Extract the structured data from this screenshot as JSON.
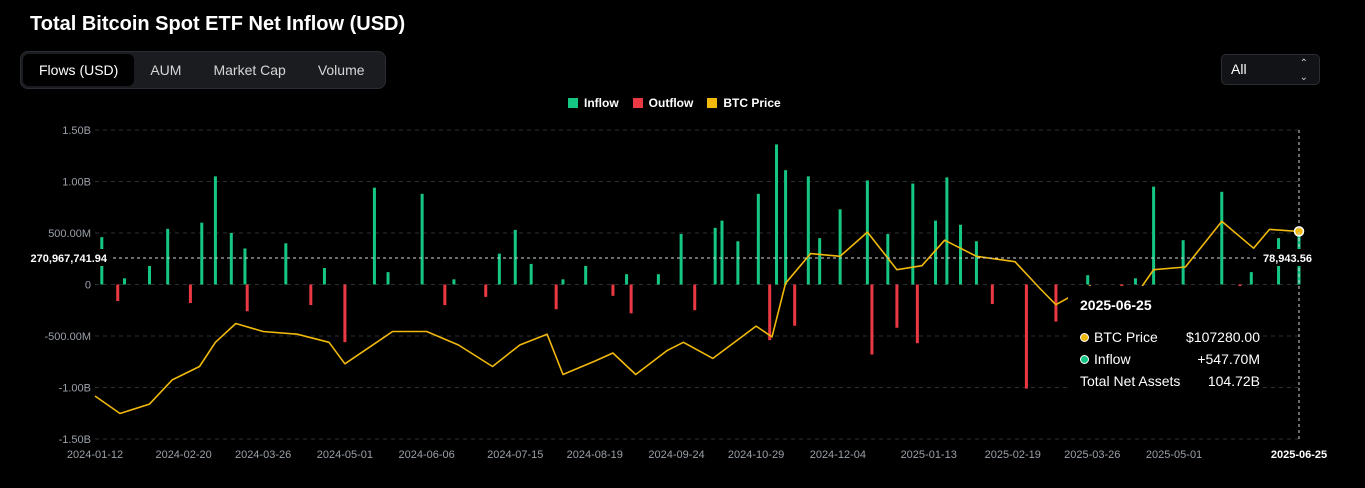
{
  "title": "Total Bitcoin Spot ETF Net Inflow (USD)",
  "tabs": [
    {
      "label": "Flows (USD)",
      "active": true
    },
    {
      "label": "AUM",
      "active": false
    },
    {
      "label": "Market Cap",
      "active": false
    },
    {
      "label": "Volume",
      "active": false
    }
  ],
  "range_select": {
    "value": "All"
  },
  "colors": {
    "inflow": "#16c784",
    "outflow": "#ea3943",
    "price": "#f0b90b"
  },
  "chart_data": {
    "type": "bar",
    "legend": [
      "Inflow",
      "Outflow",
      "BTC Price"
    ],
    "legend_position": "top-center",
    "grid": true,
    "y_axis": {
      "ticks": [
        "1.50B",
        "1.00B",
        "500.00M",
        "0",
        "-500.00M",
        "-1.00B",
        "-1.50B"
      ],
      "ylim": [
        -1500000000,
        1500000000
      ]
    },
    "x_axis": {
      "ticks": [
        "2024-01-12",
        "2024-02-20",
        "2024-03-26",
        "2024-05-01",
        "2024-06-06",
        "2024-07-15",
        "2024-08-19",
        "2024-09-24",
        "2024-10-29",
        "2024-12-04",
        "2025-01-13",
        "2025-02-19",
        "2025-03-26",
        "2025-05-01",
        "2025-06-25"
      ]
    },
    "crosshair": {
      "y_label": "270,967,741.94",
      "right_label": "78,943.56",
      "x_label": "2025-06-25"
    },
    "series": [
      {
        "name": "Inflow",
        "type": "bar",
        "x": [
          "2024-01-15",
          "2024-01-25",
          "2024-02-05",
          "2024-02-13",
          "2024-02-28",
          "2024-03-05",
          "2024-03-12",
          "2024-03-18",
          "2024-04-05",
          "2024-04-22",
          "2024-05-14",
          "2024-05-20",
          "2024-06-04",
          "2024-06-18",
          "2024-07-08",
          "2024-07-15",
          "2024-07-22",
          "2024-08-05",
          "2024-08-15",
          "2024-09-02",
          "2024-09-16",
          "2024-09-26",
          "2024-10-11",
          "2024-10-14",
          "2024-10-21",
          "2024-10-30",
          "2024-11-07",
          "2024-11-11",
          "2024-11-21",
          "2024-11-26",
          "2024-12-05",
          "2024-12-17",
          "2024-12-26",
          "2025-01-06",
          "2025-01-16",
          "2025-01-21",
          "2025-01-27",
          "2025-02-03",
          "2025-03-24",
          "2025-04-14",
          "2025-04-22",
          "2025-05-05",
          "2025-05-22",
          "2025-06-04",
          "2025-06-16",
          "2025-06-25"
        ],
        "values": [
          460000000,
          60000000,
          180000000,
          540000000,
          600000000,
          1050000000,
          500000000,
          350000000,
          400000000,
          160000000,
          940000000,
          120000000,
          880000000,
          50000000,
          300000000,
          530000000,
          200000000,
          50000000,
          180000000,
          100000000,
          100000000,
          490000000,
          550000000,
          620000000,
          420000000,
          880000000,
          1360000000,
          1110000000,
          1050000000,
          450000000,
          730000000,
          1010000000,
          490000000,
          980000000,
          620000000,
          1040000000,
          580000000,
          420000000,
          90000000,
          60000000,
          950000000,
          430000000,
          900000000,
          120000000,
          450000000,
          547700000
        ]
      },
      {
        "name": "Outflow",
        "type": "bar",
        "x": [
          "2024-01-22",
          "2024-02-23",
          "2024-03-19",
          "2024-04-16",
          "2024-05-01",
          "2024-06-14",
          "2024-07-02",
          "2024-08-02",
          "2024-08-27",
          "2024-09-04",
          "2024-10-02",
          "2024-11-04",
          "2024-11-15",
          "2024-12-19",
          "2024-12-30",
          "2025-01-08",
          "2025-02-10",
          "2025-02-25",
          "2025-03-10",
          "2025-04-08",
          "2025-05-30"
        ],
        "values": [
          -160000000,
          -180000000,
          -260000000,
          -200000000,
          -560000000,
          -200000000,
          -120000000,
          -240000000,
          -110000000,
          -280000000,
          -250000000,
          -540000000,
          -400000000,
          -680000000,
          -420000000,
          -570000000,
          -190000000,
          -1010000000,
          -360000000,
          -140000000,
          -90000000
        ]
      },
      {
        "name": "BTC Price",
        "type": "line",
        "x": [
          "2024-01-12",
          "2024-01-23",
          "2024-02-05",
          "2024-02-15",
          "2024-02-27",
          "2024-03-05",
          "2024-03-14",
          "2024-03-26",
          "2024-04-10",
          "2024-04-24",
          "2024-05-01",
          "2024-05-15",
          "2024-05-22",
          "2024-06-06",
          "2024-06-20",
          "2024-07-05",
          "2024-07-17",
          "2024-07-29",
          "2024-08-05",
          "2024-08-19",
          "2024-08-27",
          "2024-09-06",
          "2024-09-20",
          "2024-09-27",
          "2024-10-10",
          "2024-10-29",
          "2024-11-05",
          "2024-11-11",
          "2024-11-22",
          "2024-12-05",
          "2024-12-17",
          "2024-12-30",
          "2025-01-10",
          "2025-01-20",
          "2025-02-03",
          "2025-02-20",
          "2025-03-03",
          "2025-03-10",
          "2025-03-25",
          "2025-04-08",
          "2025-04-22",
          "2025-05-06",
          "2025-05-22",
          "2025-06-05",
          "2025-06-12",
          "2025-06-25"
        ],
        "values": [
          46000,
          39500,
          43000,
          52000,
          57000,
          66000,
          73000,
          70000,
          69000,
          66000,
          58000,
          66000,
          70000,
          70000,
          65000,
          57000,
          65000,
          69000,
          54000,
          59000,
          62000,
          54000,
          63000,
          66000,
          60000,
          72000,
          68000,
          88000,
          99000,
          98000,
          107000,
          93000,
          94500,
          104000,
          98000,
          96000,
          86000,
          80000,
          87000,
          76000,
          93000,
          94000,
          111000,
          101000,
          108000,
          107280
        ]
      }
    ]
  },
  "tooltip": {
    "date": "2025-06-25",
    "rows": [
      {
        "label": "BTC Price",
        "value": "$107280.00",
        "color": "#f0b90b"
      },
      {
        "label": "Inflow",
        "value": "+547.70M",
        "color": "#16c784"
      },
      {
        "label": "Total Net Assets",
        "value": "104.72B"
      }
    ]
  }
}
